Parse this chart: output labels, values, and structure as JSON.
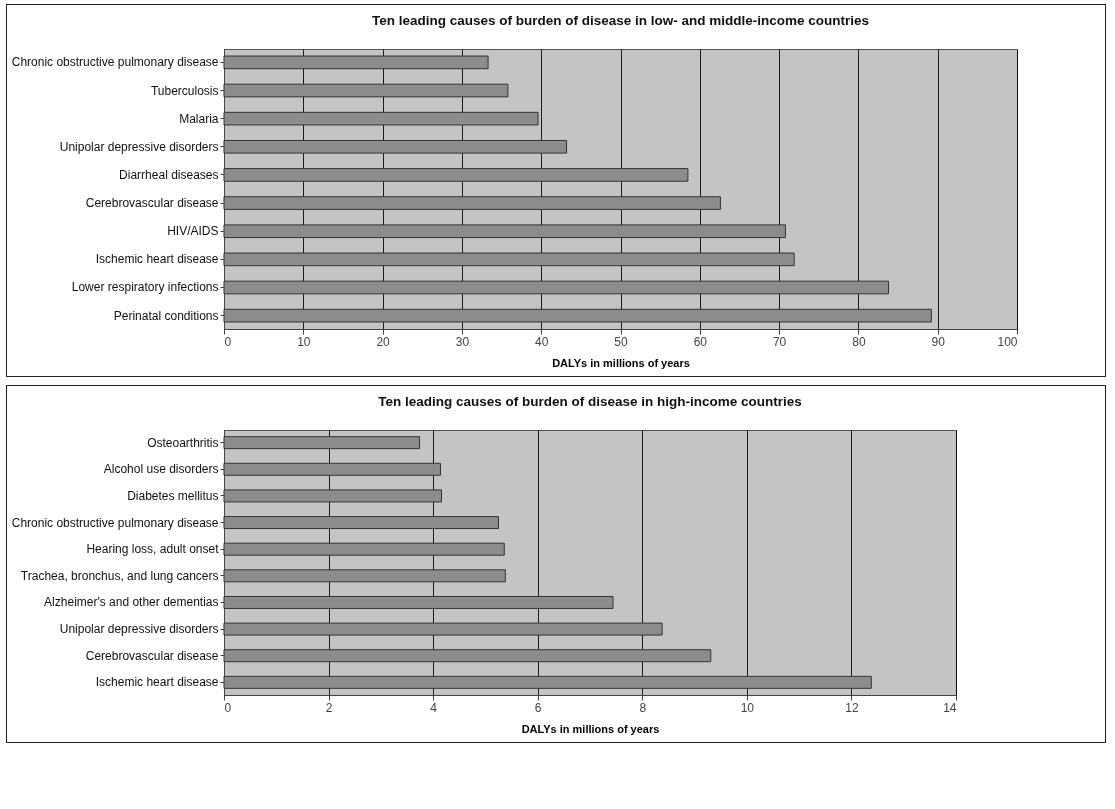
{
  "chart_data": [
    {
      "type": "bar",
      "orientation": "horizontal",
      "title": "Ten leading causes of burden of disease in low- and middle-income countries",
      "xlabel": "DALYs in millions of years",
      "categories": [
        "Chronic obstructive pulmonary disease",
        "Tuberculosis",
        "Malaria",
        "Unipolar depressive disorders",
        "Diarrheal diseases",
        "Cerebrovascular disease",
        "HIV/AIDS",
        "Ischemic heart disease",
        "Lower respiratory infections",
        "Perinatal conditions"
      ],
      "values": [
        33.3,
        35.8,
        39.6,
        43.2,
        58.5,
        62.6,
        70.8,
        71.9,
        83.8,
        89.2
      ],
      "color": "#8c8c8c",
      "xlim": [
        0,
        100
      ],
      "xticks": [
        0,
        10,
        20,
        30,
        40,
        50,
        60,
        70,
        80,
        90,
        100
      ],
      "grid": "x"
    },
    {
      "type": "bar",
      "orientation": "horizontal",
      "title": "Ten leading causes of burden of disease in high-income countries",
      "xlabel": "DALYs in millions of years",
      "categories": [
        "Osteoarthritis",
        "Alcohol use disorders",
        "Diabetes mellitus",
        "Chronic obstructive pulmonary disease",
        "Hearing loss, adult onset",
        "Trachea, bronchus, and lung cancers",
        "Alzheimer's and other dementias",
        "Unipolar depressive disorders",
        "Cerebrovascular disease",
        "Ischemic heart disease"
      ],
      "values": [
        3.74,
        4.14,
        4.16,
        5.25,
        5.36,
        5.38,
        7.44,
        8.38,
        9.31,
        12.38
      ],
      "color": "#8c8c8c",
      "xlim": [
        0,
        14
      ],
      "xticks": [
        0,
        2,
        4,
        6,
        8,
        10,
        12,
        14
      ],
      "grid": "x"
    }
  ]
}
